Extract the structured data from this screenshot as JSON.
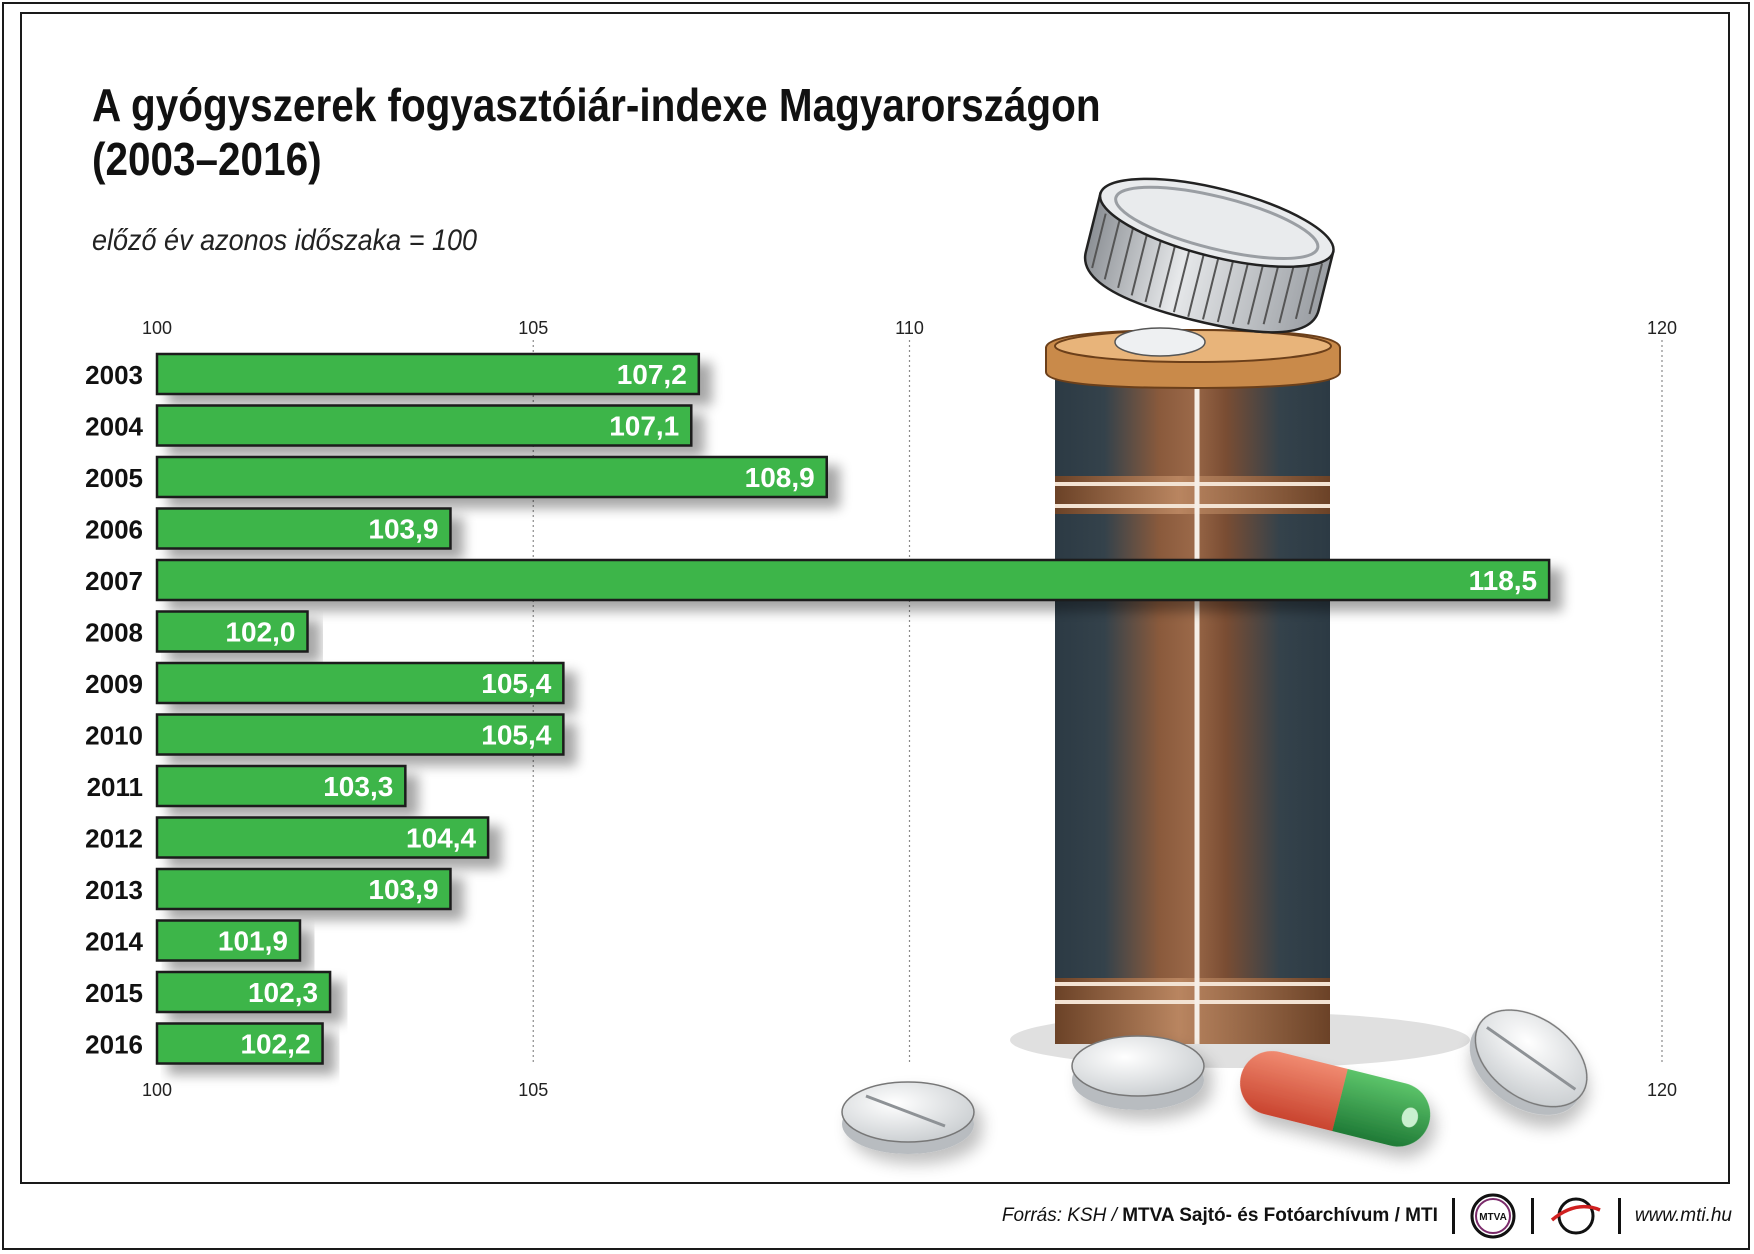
{
  "header": {
    "title_line1": "A gyógyszerek fogyasztóiár-indexe Magyarországon",
    "title_line2": "(2003–2016)",
    "subtitle": "előző év azonos időszaka = 100"
  },
  "chart_data": {
    "type": "bar",
    "orientation": "horizontal",
    "title": "A gyógyszerek fogyasztóiár-indexe Magyarországon (2003–2016)",
    "subtitle": "előző év azonos időszaka = 100",
    "categories": [
      "2003",
      "2004",
      "2005",
      "2006",
      "2007",
      "2008",
      "2009",
      "2010",
      "2011",
      "2012",
      "2013",
      "2014",
      "2015",
      "2016"
    ],
    "values": [
      107.2,
      107.1,
      108.9,
      103.9,
      118.5,
      102.0,
      105.4,
      105.4,
      103.3,
      104.4,
      103.9,
      101.9,
      102.3,
      102.2
    ],
    "value_labels": [
      "107,2",
      "107,1",
      "108,9",
      "103,9",
      "118,5",
      "102,0",
      "105,4",
      "105,4",
      "103,3",
      "104,4",
      "103,9",
      "101,9",
      "102,3",
      "102,2"
    ],
    "xlim": [
      100,
      120
    ],
    "top_ticks": [
      "100",
      "105",
      "110",
      "120"
    ],
    "top_tick_values": [
      100,
      105,
      110,
      120
    ],
    "bottom_ticks": [
      "100",
      "105",
      "120"
    ],
    "bottom_tick_values": [
      100,
      105,
      120
    ],
    "grid_values": [
      105,
      110,
      120
    ],
    "grid": true,
    "bar_color": "#3db54a",
    "bar_border": "#1a1a1a"
  },
  "footer": {
    "source": "Forrás: KSH /",
    "org": "MTVA Sajtó- és Fotóarchívum / MTI",
    "logo_text": "MTVA",
    "url": "www.mti.hu"
  },
  "colors": {
    "bottle_dark": "#2c3a44",
    "bottle_brown": "#8a5a3c",
    "lid": "#c8cbce",
    "capsule_red": "#e8604a",
    "capsule_green": "#2f9e4a"
  },
  "icons": [
    "pill-bottle-icon",
    "bottle-lid-icon",
    "tablet-icon",
    "capsule-icon",
    "mtva-logo",
    "mti-logo"
  ]
}
